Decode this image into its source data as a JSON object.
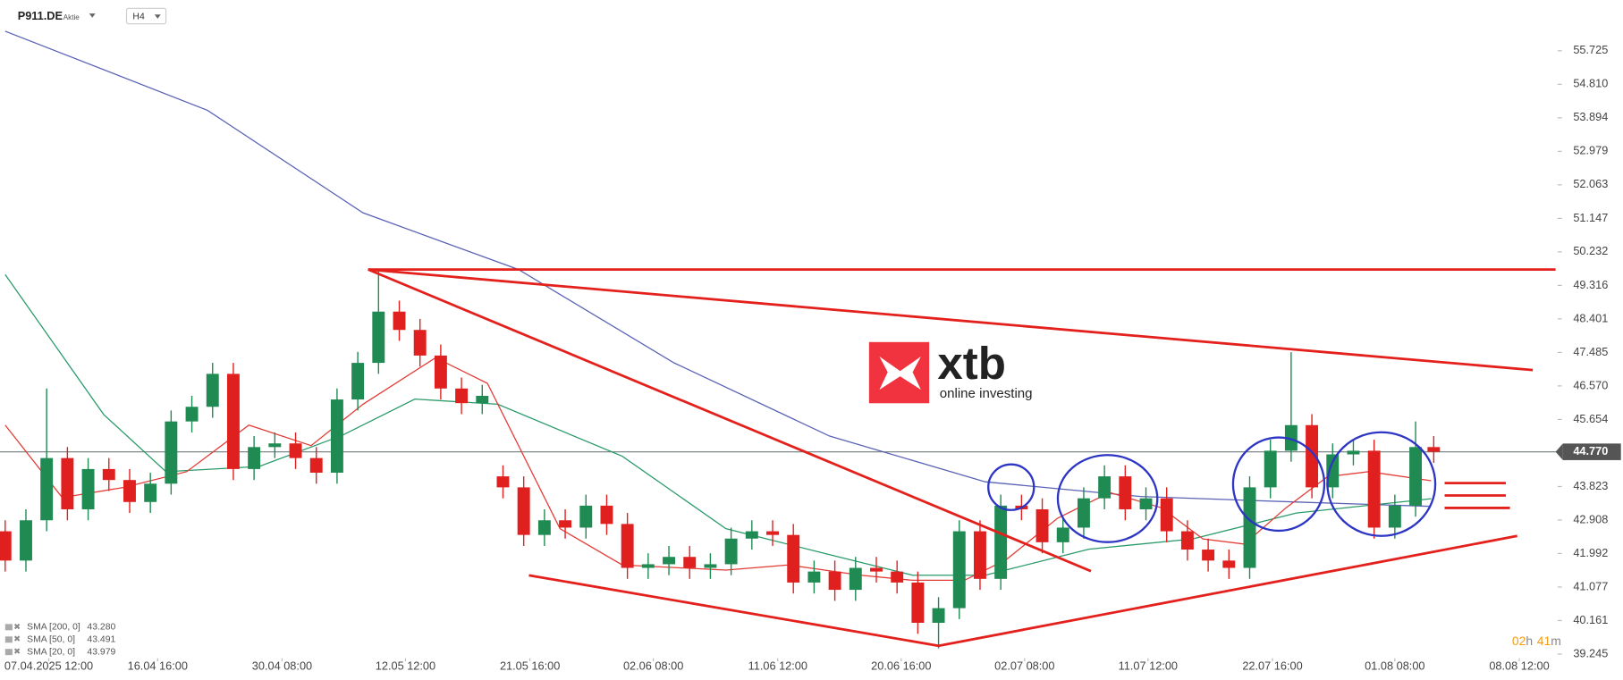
{
  "header": {
    "symbol": "P911.DE",
    "instrument_type": "Aktie",
    "timeframe": "H4"
  },
  "logo": {
    "name": "xtb",
    "tagline": "online investing"
  },
  "timer": {
    "hours": "02",
    "h": "h",
    "minutes": "41",
    "m": "m"
  },
  "chart_data": {
    "type": "candlestick",
    "xlim": [
      0,
      300
    ],
    "ylim": [
      39.132,
      57.112
    ],
    "x": [
      1,
      5,
      9,
      13,
      17,
      21,
      25,
      29,
      33,
      37,
      41,
      45,
      49,
      53,
      57,
      61,
      65,
      69,
      73,
      77,
      81,
      85,
      89,
      93,
      97,
      101,
      105,
      109,
      113,
      117,
      121,
      125,
      129,
      133,
      137,
      141,
      145,
      149,
      153,
      157,
      161,
      165,
      169,
      173,
      177,
      181,
      185,
      189,
      193,
      197,
      201,
      205,
      209,
      213,
      217,
      221,
      225,
      229,
      233,
      237,
      241,
      245,
      249,
      253,
      257,
      261,
      265,
      269,
      273,
      276.5
    ],
    "open": [
      42.6,
      41.8,
      42.9,
      44.6,
      43.2,
      44.3,
      44.0,
      43.4,
      43.9,
      45.6,
      46.0,
      46.9,
      44.3,
      44.9,
      45.0,
      44.6,
      44.2,
      46.2,
      47.2,
      48.6,
      48.1,
      47.4,
      46.5,
      46.1,
      44.1,
      43.8,
      42.5,
      42.9,
      42.7,
      43.3,
      42.8,
      41.6,
      41.7,
      41.9,
      41.6,
      41.7,
      42.4,
      42.6,
      42.5,
      41.2,
      41.5,
      41.0,
      41.6,
      41.5,
      41.2,
      40.1,
      40.5,
      42.6,
      41.3,
      43.3,
      43.2,
      42.3,
      42.7,
      43.5,
      44.1,
      43.2,
      43.5,
      42.6,
      42.1,
      41.8,
      41.6,
      43.8,
      44.8,
      45.5,
      43.8,
      44.7,
      44.8,
      42.7,
      43.3,
      44.9
    ],
    "high": [
      42.9,
      43.2,
      46.5,
      44.9,
      44.6,
      44.6,
      44.3,
      44.2,
      45.9,
      46.3,
      47.2,
      47.2,
      45.2,
      45.3,
      45.3,
      44.9,
      46.5,
      47.5,
      49.7,
      48.9,
      48.4,
      47.7,
      46.8,
      46.6,
      44.4,
      44.1,
      43.2,
      43.2,
      43.6,
      43.6,
      43.1,
      42.0,
      42.2,
      42.2,
      42.0,
      42.7,
      42.9,
      42.9,
      42.8,
      41.8,
      41.8,
      41.9,
      41.9,
      41.8,
      41.5,
      40.8,
      42.9,
      42.9,
      43.6,
      43.6,
      43.5,
      43.0,
      43.8,
      44.4,
      44.4,
      43.8,
      43.8,
      42.9,
      42.4,
      42.1,
      44.1,
      45.1,
      47.49,
      45.8,
      45.0,
      45.1,
      45.1,
      43.6,
      45.6,
      45.2
    ],
    "low": [
      41.5,
      41.5,
      42.6,
      42.9,
      42.9,
      43.7,
      43.1,
      43.1,
      43.6,
      45.3,
      45.7,
      44.0,
      44.0,
      44.6,
      44.3,
      43.9,
      43.9,
      45.9,
      46.9,
      47.8,
      47.1,
      46.2,
      45.8,
      45.8,
      43.5,
      42.2,
      42.2,
      42.4,
      42.4,
      42.5,
      41.3,
      41.3,
      41.4,
      41.3,
      41.3,
      41.4,
      42.1,
      42.2,
      40.9,
      40.9,
      40.7,
      40.7,
      41.2,
      40.9,
      39.8,
      39.4,
      40.2,
      41.0,
      41.0,
      42.9,
      42.0,
      42.0,
      42.4,
      43.2,
      42.9,
      42.9,
      42.3,
      41.8,
      41.5,
      41.3,
      41.3,
      43.5,
      44.5,
      43.5,
      43.5,
      44.4,
      42.4,
      42.4,
      43.0,
      44.47
    ],
    "close": [
      41.8,
      42.9,
      44.6,
      43.2,
      44.3,
      44.0,
      43.4,
      43.9,
      45.6,
      46.0,
      46.9,
      44.3,
      44.9,
      45.0,
      44.6,
      44.2,
      46.2,
      47.2,
      48.6,
      48.1,
      47.4,
      46.5,
      46.1,
      46.3,
      43.8,
      42.5,
      42.9,
      42.7,
      43.3,
      42.8,
      41.6,
      41.7,
      41.9,
      41.6,
      41.7,
      42.4,
      42.6,
      42.5,
      41.2,
      41.5,
      41.0,
      41.6,
      41.5,
      41.2,
      40.1,
      40.5,
      42.6,
      41.3,
      43.3,
      43.2,
      42.3,
      42.7,
      43.5,
      44.1,
      43.2,
      43.5,
      42.6,
      42.1,
      41.8,
      41.6,
      43.8,
      44.8,
      45.5,
      43.8,
      44.7,
      44.8,
      42.7,
      43.3,
      44.9,
      44.77
    ],
    "up_color": "#1f8a52",
    "down_color": "#e0201f",
    "series": [
      {
        "name": "SMA [200, 0]",
        "legend_value": "43.280",
        "color": "#5a62b5",
        "x": [
          1,
          40,
          70,
          100,
          130,
          160,
          190,
          220,
          250,
          276
        ],
        "values": [
          56.26,
          54.1,
          51.3,
          49.75,
          47.2,
          45.2,
          43.95,
          43.55,
          43.4,
          43.28
        ]
      },
      {
        "name": "SMA [50, 0]",
        "legend_value": "43.491",
        "color": "#2a9a6a",
        "x": [
          1,
          20,
          32,
          50,
          66,
          80,
          96,
          120,
          140,
          160,
          176,
          190,
          210,
          230,
          250,
          276
        ],
        "values": [
          49.61,
          45.79,
          44.23,
          44.37,
          45.22,
          46.21,
          46.07,
          44.65,
          42.67,
          41.96,
          41.4,
          41.4,
          42.11,
          42.39,
          43.1,
          43.491
        ]
      },
      {
        "name": "SMA [20, 0]",
        "legend_value": "43.979",
        "color": "#e33b35",
        "x": [
          1,
          12,
          24,
          36,
          48,
          60,
          70,
          84,
          94,
          108,
          120,
          140,
          152,
          166,
          176,
          186,
          194,
          204,
          214,
          224,
          232,
          240,
          248,
          256,
          264,
          276
        ],
        "values": [
          45.5,
          43.52,
          43.8,
          44.23,
          45.5,
          44.94,
          46.07,
          47.34,
          46.64,
          42.67,
          41.68,
          41.54,
          41.68,
          41.4,
          41.26,
          41.26,
          41.82,
          42.96,
          43.66,
          43.24,
          42.39,
          42.25,
          43.24,
          44.09,
          44.23,
          43.979
        ]
      }
    ],
    "current_price": {
      "value": 44.77,
      "label": "44.770"
    },
    "yticks": [
      55.725,
      {
        "value": 54.81,
        "label": "54.810"
      },
      53.894,
      52.979,
      52.063,
      51.147,
      50.232,
      49.316,
      48.401,
      47.485,
      {
        "value": 46.57,
        "label": "46.570"
      },
      45.654,
      43.823,
      42.908,
      41.992,
      41.077,
      40.161,
      39.245
    ],
    "xticks": [
      {
        "value": 9.4,
        "label": "07.04.2025  12:00"
      },
      {
        "value": 30.4,
        "label": "16.04  16:00"
      },
      {
        "value": 54.4,
        "label": "30.04  08:00"
      },
      {
        "value": 78.2,
        "label": "12.05  12:00"
      },
      {
        "value": 102.2,
        "label": "21.05  16:00"
      },
      {
        "value": 126,
        "label": "02.06  08:00"
      },
      {
        "value": 150,
        "label": "11.06  12:00"
      },
      {
        "value": 173.8,
        "label": "20.06  16:00"
      },
      {
        "value": 197.6,
        "label": "02.07  08:00"
      },
      {
        "value": 221.4,
        "label": "11.07  12:00"
      },
      {
        "value": 245.4,
        "label": "22.07  16:00"
      },
      {
        "value": 269,
        "label": "01.08  08:00"
      },
      {
        "value": 293,
        "label": "08.08  12:00"
      }
    ]
  }
}
